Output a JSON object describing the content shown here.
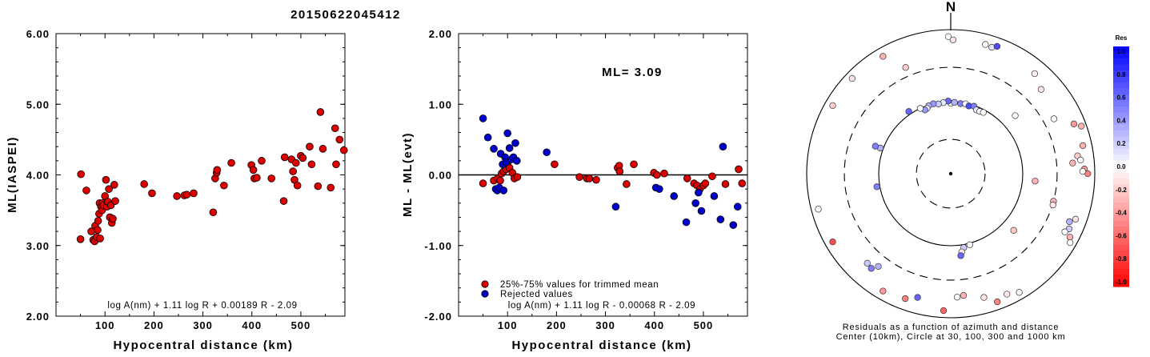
{
  "title": "20150622045412",
  "chart_data": [
    {
      "type": "scatter",
      "xlabel": "Hypocentral distance (km)",
      "ylabel": "ML(IASPEI)",
      "xlim": [
        0,
        590
      ],
      "ylim": [
        2.0,
        6.0
      ],
      "xticks": [
        "100",
        "200",
        "300",
        "400",
        "500"
      ],
      "yticks": [
        "2.00",
        "3.00",
        "4.00",
        "5.00",
        "6.00"
      ],
      "formula": "log A(nm) + 1.11 log R + 0.00189 R - 2.09",
      "marker_color": "#dd0000",
      "points": [
        [
          50,
          3.09
        ],
        [
          51,
          4.01
        ],
        [
          62,
          3.78
        ],
        [
          72,
          3.2
        ],
        [
          76,
          3.08
        ],
        [
          79,
          3.06
        ],
        [
          80,
          3.28
        ],
        [
          83,
          3.12
        ],
        [
          85,
          3.22
        ],
        [
          86,
          3.35
        ],
        [
          88,
          3.45
        ],
        [
          89,
          3.6
        ],
        [
          90,
          3.1
        ],
        [
          92,
          3.55
        ],
        [
          94,
          3.5
        ],
        [
          95,
          3.6
        ],
        [
          97,
          3.57
        ],
        [
          100,
          3.7
        ],
        [
          102,
          3.93
        ],
        [
          104,
          3.55
        ],
        [
          106,
          3.62
        ],
        [
          108,
          3.8
        ],
        [
          110,
          3.4
        ],
        [
          112,
          3.57
        ],
        [
          114,
          3.32
        ],
        [
          116,
          3.38
        ],
        [
          119,
          3.86
        ],
        [
          121,
          3.63
        ],
        [
          180,
          3.87
        ],
        [
          196,
          3.74
        ],
        [
          247,
          3.7
        ],
        [
          262,
          3.71
        ],
        [
          267,
          3.72
        ],
        [
          281,
          3.74
        ],
        [
          321,
          3.47
        ],
        [
          325,
          3.95
        ],
        [
          328,
          4.03
        ],
        [
          329,
          4.07
        ],
        [
          343,
          3.85
        ],
        [
          358,
          4.17
        ],
        [
          399,
          4.14
        ],
        [
          403,
          4.07
        ],
        [
          405,
          3.95
        ],
        [
          410,
          3.96
        ],
        [
          420,
          4.2
        ],
        [
          440,
          3.95
        ],
        [
          465,
          3.63
        ],
        [
          467,
          4.25
        ],
        [
          481,
          4.22
        ],
        [
          484,
          4.05
        ],
        [
          487,
          3.93
        ],
        [
          490,
          4.17
        ],
        [
          493,
          3.85
        ],
        [
          500,
          4.27
        ],
        [
          504,
          4.24
        ],
        [
          518,
          4.4
        ],
        [
          522,
          4.15
        ],
        [
          535,
          3.84
        ],
        [
          540,
          4.89
        ],
        [
          545,
          4.37
        ],
        [
          561,
          3.82
        ],
        [
          570,
          4.66
        ],
        [
          572,
          4.15
        ],
        [
          579,
          4.5
        ],
        [
          588,
          4.35
        ]
      ]
    },
    {
      "type": "scatter",
      "xlabel": "Hypocentral distance (km)",
      "ylabel": "ML - ML(evt)",
      "xlim": [
        0,
        590
      ],
      "ylim": [
        -2.0,
        2.0
      ],
      "xticks": [
        "100",
        "200",
        "300",
        "400",
        "500"
      ],
      "yticks": [
        "-2.00",
        "-1.00",
        "0.00",
        "1.00",
        "2.00"
      ],
      "annotation": "ML= 3.09",
      "formula": "log A(nm) + 1.11 log R - 0.00068 R - 2.09",
      "legend": [
        {
          "label": "25%-75% values for trimmed mean",
          "color": "#dd0000"
        },
        {
          "label": "Rejected values",
          "color": "#0000cc"
        }
      ],
      "series": [
        {
          "name": "25%-75% values for trimmed mean",
          "color": "#dd0000",
          "points": [
            [
              50,
              -0.12
            ],
            [
              72,
              -0.08
            ],
            [
              80,
              -0.05
            ],
            [
              85,
              -0.08
            ],
            [
              88,
              0.02
            ],
            [
              92,
              0.05
            ],
            [
              97,
              0.08
            ],
            [
              100,
              0.15
            ],
            [
              104,
              0.1
            ],
            [
              110,
              0.03
            ],
            [
              114,
              -0.05
            ],
            [
              120,
              -0.03
            ],
            [
              196,
              0.15
            ],
            [
              247,
              -0.03
            ],
            [
              262,
              -0.05
            ],
            [
              267,
              -0.05
            ],
            [
              281,
              -0.07
            ],
            [
              325,
              0.1
            ],
            [
              328,
              0.13
            ],
            [
              329,
              0.05
            ],
            [
              343,
              -0.13
            ],
            [
              358,
              0.15
            ],
            [
              399,
              0.03
            ],
            [
              405,
              0.0
            ],
            [
              420,
              0.02
            ],
            [
              467,
              -0.05
            ],
            [
              481,
              -0.12
            ],
            [
              487,
              -0.15
            ],
            [
              493,
              -0.2
            ],
            [
              500,
              -0.15
            ],
            [
              504,
              -0.12
            ],
            [
              518,
              -0.02
            ],
            [
              545,
              -0.13
            ],
            [
              572,
              0.08
            ],
            [
              579,
              -0.12
            ]
          ]
        },
        {
          "name": "Rejected values",
          "color": "#0000cc",
          "points": [
            [
              50,
              0.8
            ],
            [
              60,
              0.53
            ],
            [
              72,
              0.37
            ],
            [
              76,
              -0.2
            ],
            [
              79,
              -0.22
            ],
            [
              83,
              -0.18
            ],
            [
              86,
              0.3
            ],
            [
              90,
              0.15
            ],
            [
              92,
              -0.22
            ],
            [
              95,
              0.25
            ],
            [
              97,
              0.18
            ],
            [
              100,
              0.59
            ],
            [
              104,
              0.38
            ],
            [
              108,
              0.22
            ],
            [
              112,
              0.25
            ],
            [
              116,
              0.45
            ],
            [
              119,
              0.2
            ],
            [
              180,
              0.32
            ],
            [
              321,
              -0.45
            ],
            [
              403,
              -0.18
            ],
            [
              410,
              -0.2
            ],
            [
              440,
              -0.3
            ],
            [
              465,
              -0.67
            ],
            [
              484,
              -0.4
            ],
            [
              490,
              -0.25
            ],
            [
              496,
              -0.51
            ],
            [
              522,
              -0.3
            ],
            [
              535,
              -0.63
            ],
            [
              540,
              0.4
            ],
            [
              561,
              -0.71
            ],
            [
              570,
              -0.45
            ]
          ]
        }
      ]
    },
    {
      "type": "scatter",
      "subtype": "polar",
      "north_label": "N",
      "caption_lines": [
        "Residuals as a function of azimuth and distance",
        "Center (10km), Circle at 30, 100, 300 and 1000 km"
      ],
      "rings_km": [
        10,
        30,
        100,
        300,
        1000
      ],
      "colorbar": {
        "title": "Res",
        "ticks": [
          "1.0",
          "0.8",
          "0.6",
          "0.4",
          "0.2",
          "0.0",
          "-0.2",
          "-0.4",
          "-0.6",
          "-0.8",
          "-1.0"
        ],
        "max_color": "#0000ff",
        "mid_color": "#ffffff",
        "min_color": "#ff0000"
      },
      "stations": [
        {
          "az": 0,
          "dist": 95,
          "res": 0.0
        },
        {
          "az": -2,
          "dist": 102,
          "res": 0.6
        },
        {
          "az": 3,
          "dist": 98,
          "res": 0.3
        },
        {
          "az": -6,
          "dist": 98,
          "res": 0.1
        },
        {
          "az": 8,
          "dist": 96,
          "res": 0.5
        },
        {
          "az": -10,
          "dist": 96,
          "res": 0.2
        },
        {
          "az": 12,
          "dist": 98,
          "res": 0.0
        },
        {
          "az": -14,
          "dist": 100,
          "res": 0.4
        },
        {
          "az": 15,
          "dist": 94,
          "res": 0.7
        },
        {
          "az": -18,
          "dist": 98,
          "res": 0.3
        },
        {
          "az": 19,
          "dist": 98,
          "res": 0.5
        },
        {
          "az": -20,
          "dist": 92,
          "res": 0.0
        },
        {
          "az": 22,
          "dist": 90,
          "res": 0.1
        },
        {
          "az": -22,
          "dist": 90,
          "res": 0.4
        },
        {
          "az": 25,
          "dist": 90,
          "res": 0.0
        },
        {
          "az": -25,
          "dist": 100,
          "res": 0.0
        },
        {
          "az": 28,
          "dist": 92,
          "res": 0.0
        },
        {
          "az": -1,
          "dist": 800,
          "res": 0.0
        },
        {
          "az": 1,
          "dist": 720,
          "res": -0.1
        },
        {
          "az": 15,
          "dist": 720,
          "res": 0.0
        },
        {
          "az": 18,
          "dist": 700,
          "res": 0.1
        },
        {
          "az": 20,
          "dist": 760,
          "res": 0.7
        },
        {
          "az": -23,
          "dist": 400,
          "res": -0.2
        },
        {
          "az": -46,
          "dist": 800,
          "res": -0.1
        },
        {
          "az": -34,
          "dist": 110,
          "res": 0.6
        },
        {
          "az": -70,
          "dist": 110,
          "res": 0.3
        },
        {
          "az": 47,
          "dist": 520,
          "res": -0.1
        },
        {
          "az": 40,
          "dist": 650,
          "res": -0.05
        },
        {
          "az": 48,
          "dist": 160,
          "res": 0.0
        },
        {
          "az": 62,
          "dist": 420,
          "res": 0.0
        },
        {
          "az": 68,
          "dist": 700,
          "res": -0.4
        },
        {
          "az": 70,
          "dist": 850,
          "res": -0.3
        },
        {
          "az": 78,
          "dist": 750,
          "res": -0.3
        },
        {
          "az": 82,
          "dist": 600,
          "res": -0.2
        },
        {
          "az": 84,
          "dist": 650,
          "res": 0.0
        },
        {
          "az": 85,
          "dist": 500,
          "res": -0.3
        },
        {
          "az": 88,
          "dist": 720,
          "res": -0.4
        },
        {
          "az": 90,
          "dist": 800,
          "res": -0.5
        },
        {
          "az": 89,
          "dist": 680,
          "res": 0.0
        },
        {
          "az": 95,
          "dist": 150,
          "res": -0.3
        },
        {
          "az": 105,
          "dist": 300,
          "res": -0.3
        },
        {
          "az": 107,
          "dist": 305,
          "res": -0.1
        },
        {
          "az": 112,
          "dist": 600,
          "res": 0.3
        },
        {
          "az": 115,
          "dist": 650,
          "res": 0.2
        },
        {
          "az": 117,
          "dist": 600,
          "res": 0.0
        },
        {
          "az": 110,
          "dist": 700,
          "res": -0.1
        },
        {
          "az": 118,
          "dist": 750,
          "res": -0.3
        },
        {
          "az": 120,
          "dist": 820,
          "res": 0.0
        },
        {
          "az": 132,
          "dist": 150,
          "res": -0.2
        },
        {
          "az": 150,
          "dist": 800,
          "res": 0.0
        },
        {
          "az": 155,
          "dist": 700,
          "res": -0.1
        },
        {
          "az": 165,
          "dist": 105,
          "res": 0.0
        },
        {
          "az": 170,
          "dist": 110,
          "res": 0.2
        },
        {
          "az": 172,
          "dist": 125,
          "res": -0.1
        },
        {
          "az": 173,
          "dist": 140,
          "res": 0.6
        },
        {
          "az": 174,
          "dist": 500,
          "res": -0.3
        },
        {
          "az": 177,
          "dist": 520,
          "res": 0.0
        },
        {
          "az": 183,
          "dist": 800,
          "res": -0.6
        },
        {
          "az": 160,
          "dist": 780,
          "res": -0.5
        },
        {
          "az": 165,
          "dist": 600,
          "res": -0.1
        },
        {
          "az": 195,
          "dist": 600,
          "res": 0.6
        },
        {
          "az": 200,
          "dist": 700,
          "res": -0.5
        },
        {
          "az": 210,
          "dist": 760,
          "res": -0.4
        },
        {
          "az": 218,
          "dist": 430,
          "res": 0.3
        },
        {
          "az": 220,
          "dist": 520,
          "res": 0.5
        },
        {
          "az": 223,
          "dist": 500,
          "res": 0.2
        },
        {
          "az": 240,
          "dist": 780,
          "res": -0.7
        },
        {
          "az": 255,
          "dist": 800,
          "res": 0.0
        },
        {
          "az": 260,
          "dist": 110,
          "res": 0.5
        },
        {
          "az": 290,
          "dist": 130,
          "res": 0.5
        },
        {
          "az": 300,
          "dist": 780,
          "res": -0.2
        },
        {
          "az": 330,
          "dist": 760,
          "res": -0.3
        }
      ]
    }
  ]
}
